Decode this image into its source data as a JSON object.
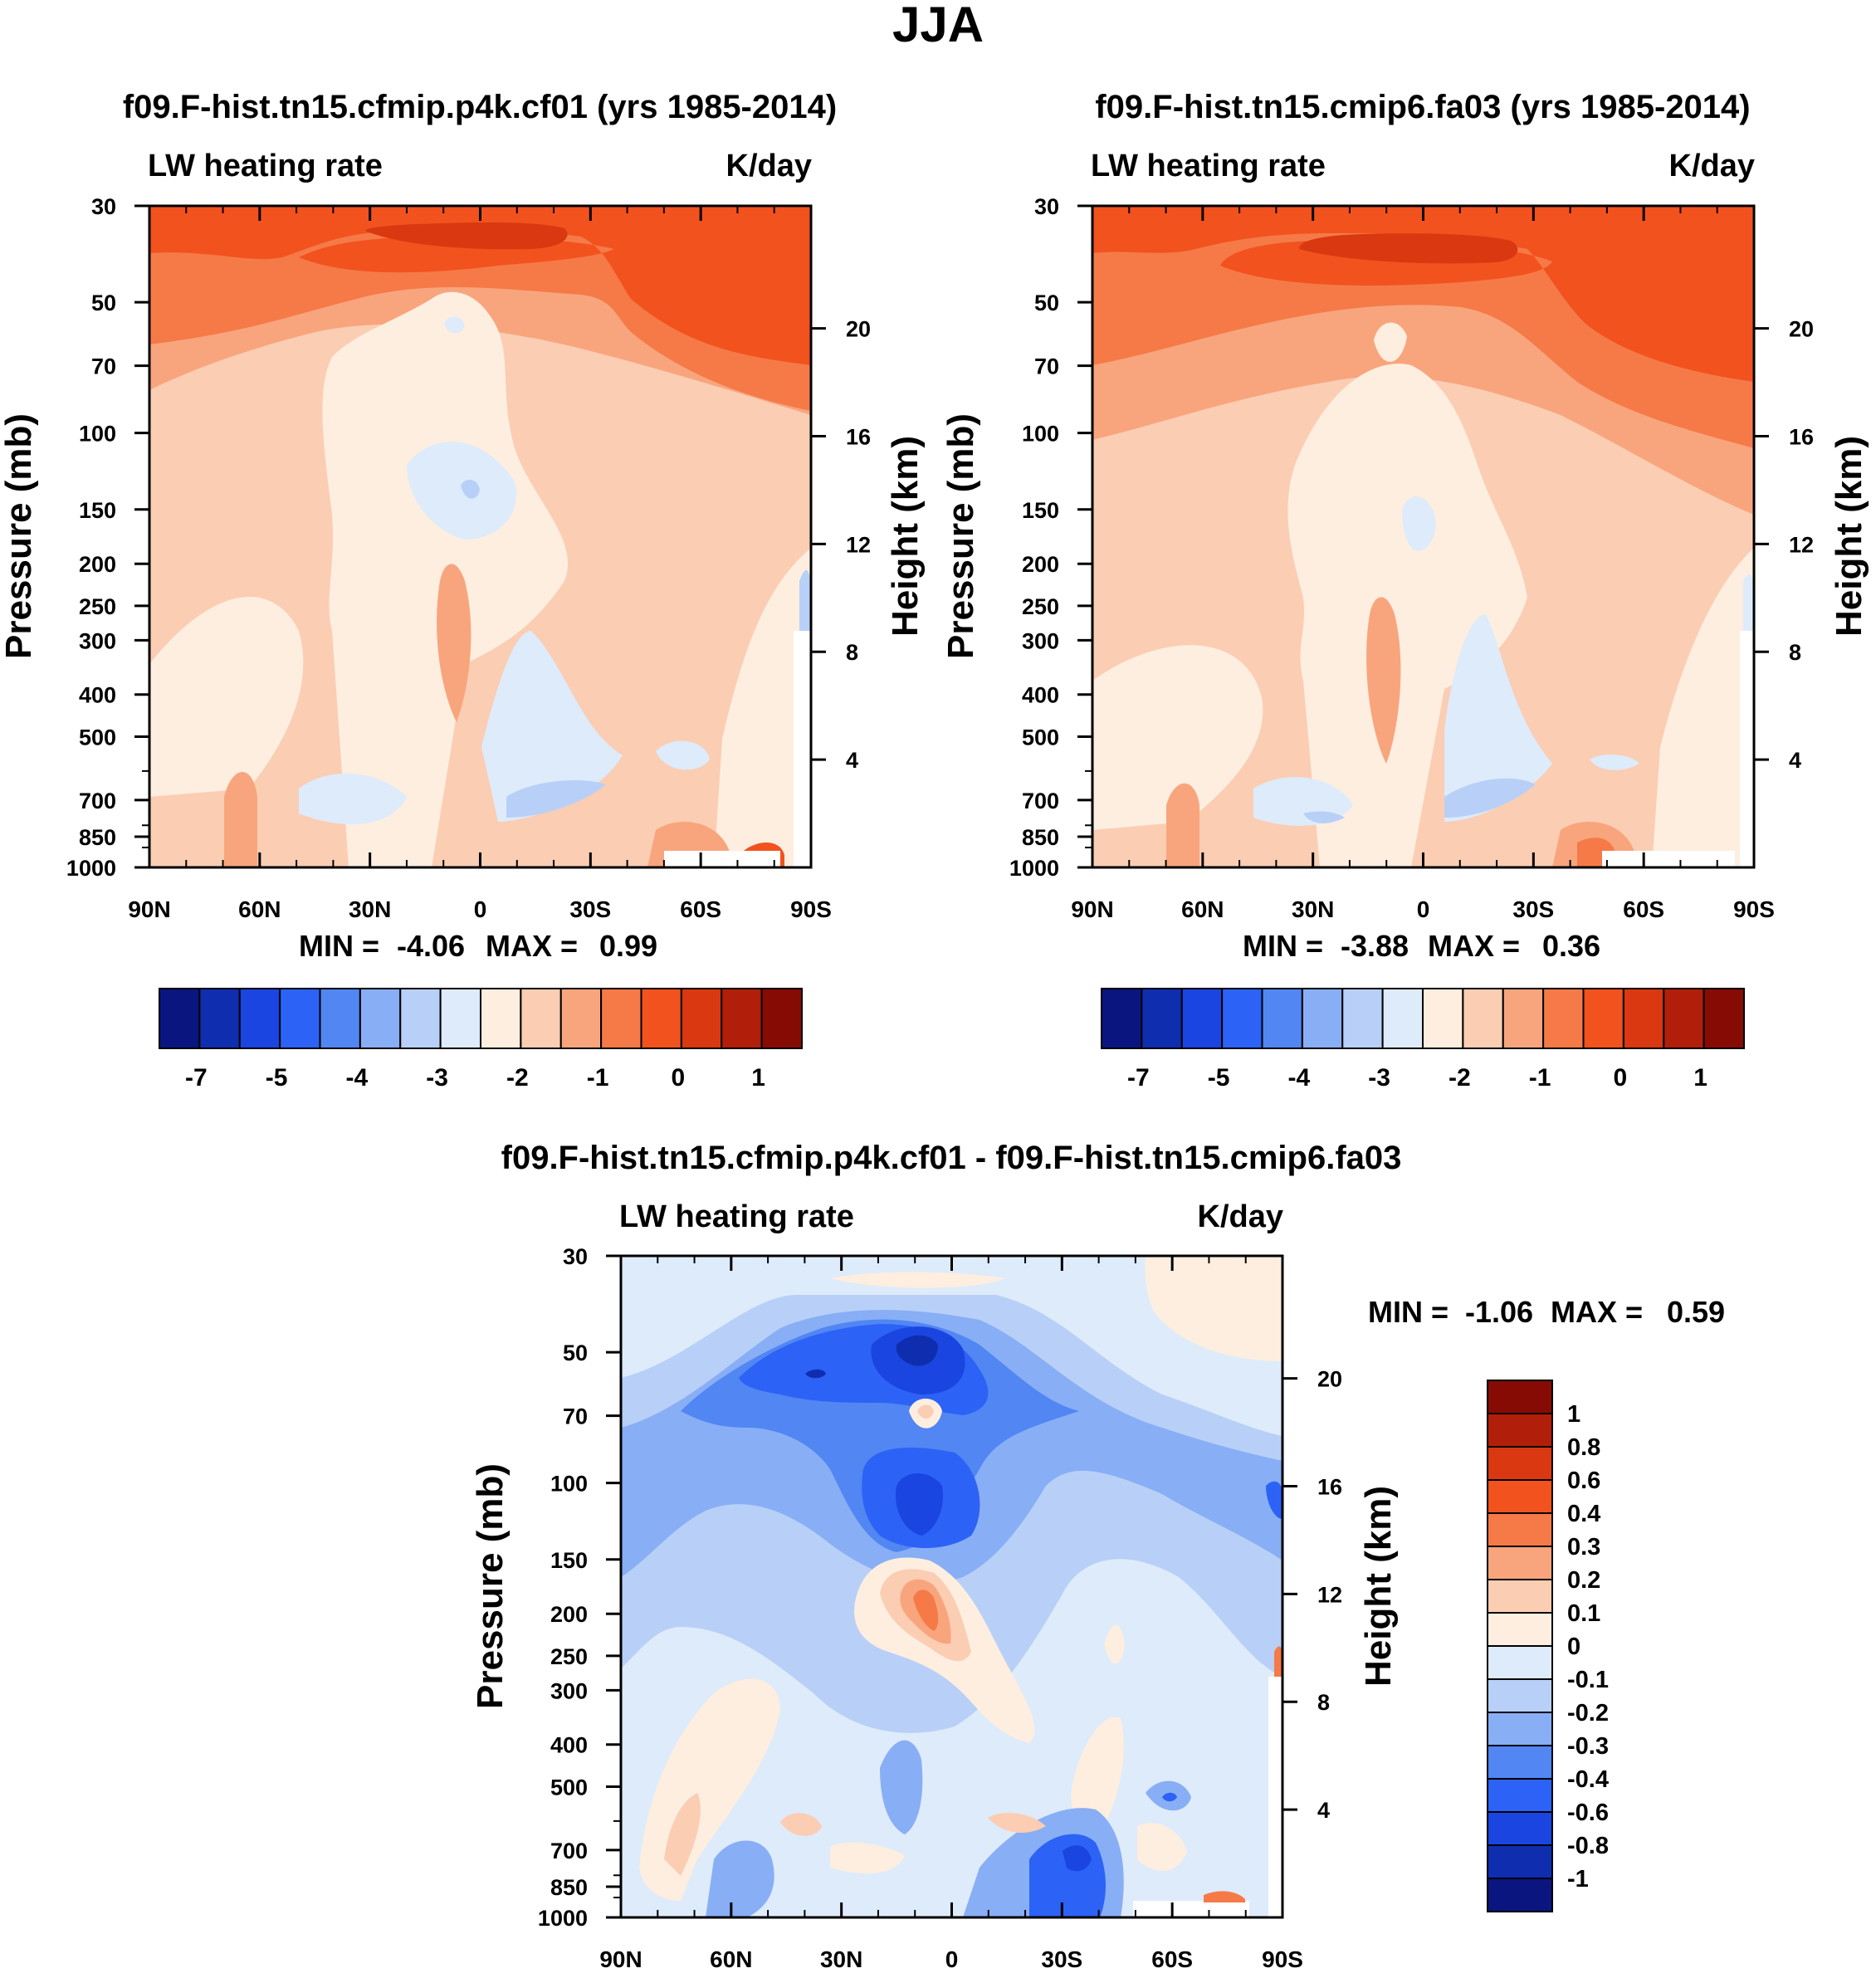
{
  "figure_title": "JJA",
  "colors": {
    "abs_palette": [
      "#0a1580",
      "#0f2eaf",
      "#1a45e0",
      "#2c62f5",
      "#5186f3",
      "#88aef5",
      "#b8d0f7",
      "#deebfa",
      "#fdeee0",
      "#fbcdb3",
      "#f8a57d",
      "#f57a48",
      "#f2521e",
      "#d93810",
      "#b11f0a",
      "#870b05"
    ],
    "diff_palette": [
      "#0a1580",
      "#0f2eaf",
      "#1a45e0",
      "#2c62f5",
      "#5186f3",
      "#88aef5",
      "#b8d0f7",
      "#deebfa",
      "#fdeee0",
      "#fbcdb3",
      "#f8a57d",
      "#f57a48",
      "#f2521e",
      "#d93810",
      "#b11f0a",
      "#870b05"
    ]
  },
  "chart_data": [
    {
      "type": "heatmap",
      "subtitle": "f09.F-hist.tn15.cfmip.p4k.cf01 (yrs 1985-2014)",
      "left_label": "LW heating rate",
      "right_label": "K/day",
      "ylabel": "Pressure (mb)",
      "ylabel2": "Height (km)",
      "x_ticks": [
        "90N",
        "60N",
        "30N",
        "0",
        "30S",
        "60S",
        "90S"
      ],
      "x_values": [
        90,
        60,
        30,
        0,
        -30,
        -60,
        -90
      ],
      "y_ticks": [
        "30",
        "50",
        "70",
        "100",
        "150",
        "200",
        "250",
        "300",
        "400",
        "500",
        "700",
        "850",
        "1000"
      ],
      "y_values": [
        30,
        50,
        70,
        100,
        150,
        200,
        250,
        300,
        400,
        500,
        700,
        850,
        1000
      ],
      "y2_ticks": [
        "20",
        "16",
        "12",
        "8",
        "4"
      ],
      "y2_values": [
        20,
        16,
        12,
        8,
        4
      ],
      "stats": {
        "min_label": "MIN =",
        "min": "-4.06",
        "max_label": "MAX =",
        "max": "0.99"
      },
      "colorbar": {
        "orientation": "horizontal",
        "labels": [
          "-7",
          "-5",
          "-4",
          "-3",
          "-2",
          "-1",
          "0",
          "1"
        ]
      }
    },
    {
      "type": "heatmap",
      "subtitle": "f09.F-hist.tn15.cmip6.fa03 (yrs 1985-2014)",
      "left_label": "LW heating rate",
      "right_label": "K/day",
      "ylabel": "Pressure (mb)",
      "ylabel2": "Height (km)",
      "x_ticks": [
        "90N",
        "60N",
        "30N",
        "0",
        "30S",
        "60S",
        "90S"
      ],
      "x_values": [
        90,
        60,
        30,
        0,
        -30,
        -60,
        -90
      ],
      "y_ticks": [
        "30",
        "50",
        "70",
        "100",
        "150",
        "200",
        "250",
        "300",
        "400",
        "500",
        "700",
        "850",
        "1000"
      ],
      "y_values": [
        30,
        50,
        70,
        100,
        150,
        200,
        250,
        300,
        400,
        500,
        700,
        850,
        1000
      ],
      "y2_ticks": [
        "20",
        "16",
        "12",
        "8",
        "4"
      ],
      "y2_values": [
        20,
        16,
        12,
        8,
        4
      ],
      "stats": {
        "min_label": "MIN =",
        "min": "-3.88",
        "max_label": "MAX =",
        "max": "0.36"
      },
      "colorbar": {
        "orientation": "horizontal",
        "labels": [
          "-7",
          "-5",
          "-4",
          "-3",
          "-2",
          "-1",
          "0",
          "1"
        ]
      }
    },
    {
      "type": "heatmap",
      "subtitle": "f09.F-hist.tn15.cfmip.p4k.cf01 - f09.F-hist.tn15.cmip6.fa03",
      "left_label": "LW heating rate",
      "right_label": "K/day",
      "ylabel": "Pressure (mb)",
      "ylabel2": "Height (km)",
      "x_ticks": [
        "90N",
        "60N",
        "30N",
        "0",
        "30S",
        "60S",
        "90S"
      ],
      "x_values": [
        90,
        60,
        30,
        0,
        -30,
        -60,
        -90
      ],
      "y_ticks": [
        "30",
        "50",
        "70",
        "100",
        "150",
        "200",
        "250",
        "300",
        "400",
        "500",
        "700",
        "850",
        "1000"
      ],
      "y_values": [
        30,
        50,
        70,
        100,
        150,
        200,
        250,
        300,
        400,
        500,
        700,
        850,
        1000
      ],
      "y2_ticks": [
        "20",
        "16",
        "12",
        "8",
        "4"
      ],
      "y2_values": [
        20,
        16,
        12,
        8,
        4
      ],
      "stats": {
        "min_label": "MIN =",
        "min": "-1.06",
        "max_label": "MAX =",
        "max": "0.59"
      },
      "colorbar": {
        "orientation": "vertical",
        "labels": [
          "1",
          "0.8",
          "0.6",
          "0.4",
          "0.3",
          "0.2",
          "0.1",
          "0",
          "-0.1",
          "-0.2",
          "-0.3",
          "-0.4",
          "-0.6",
          "-0.8",
          "-1"
        ]
      }
    }
  ]
}
